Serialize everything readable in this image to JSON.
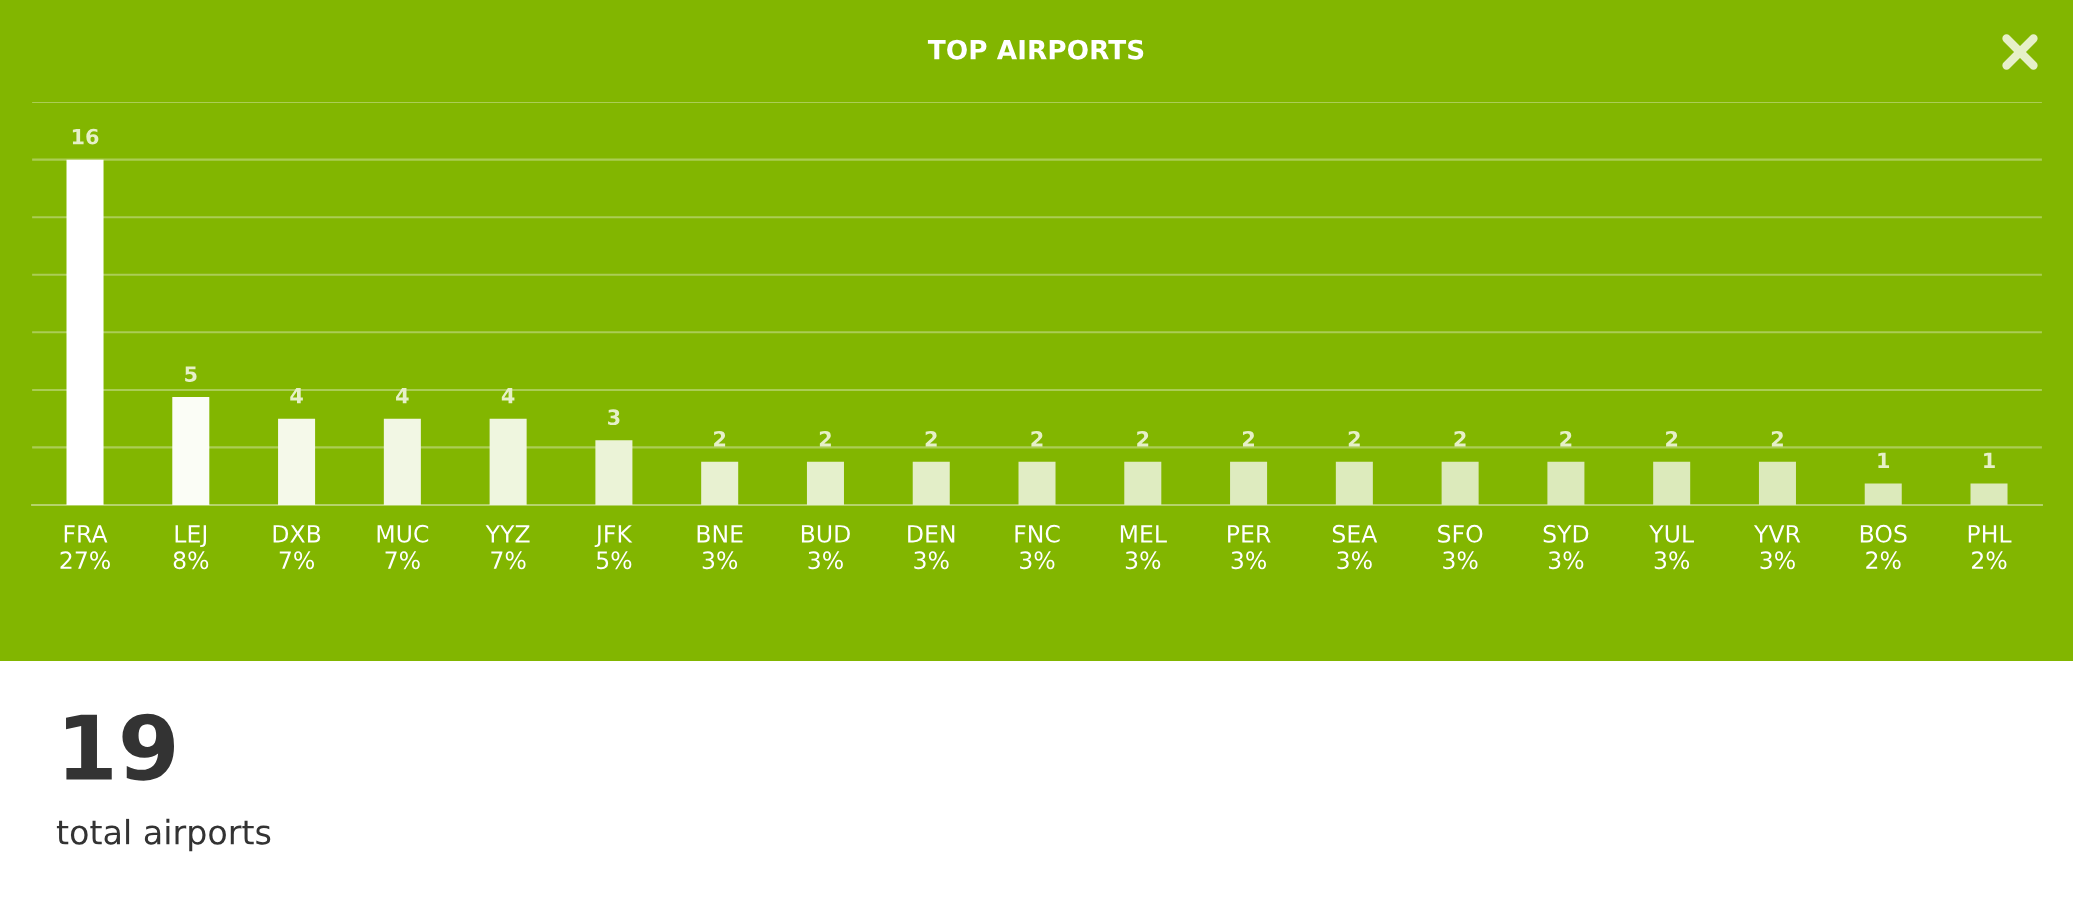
{
  "chart_data": {
    "type": "bar",
    "title": "TOP AIRPORTS",
    "categories": [
      "FRA\n27%",
      "LEJ\n8%",
      "DXB\n7%",
      "MUC\n7%",
      "YYZ\n7%",
      "JFK\n5%",
      "BNE\n3%",
      "BUD\n3%",
      "DEN\n3%",
      "FNC\n3%",
      "MEL\n3%",
      "PER\n3%",
      "SEA\n3%",
      "SFO\n3%",
      "SYD\n3%",
      "YUL\n3%",
      "YVR\n3%",
      "BOS\n2%",
      "PHL\n2%"
    ],
    "values": [
      16,
      5,
      4,
      4,
      4,
      3,
      2,
      2,
      2,
      2,
      2,
      2,
      2,
      2,
      2,
      2,
      2,
      1,
      1
    ],
    "colors": [
      "#ffffff",
      "#fbfdf6",
      "#f5f9ea",
      "#f2f7e4",
      "#eff6df",
      "#ebf3d7",
      "#e8f1d1",
      "#e5f0cc",
      "#e3eec8",
      "#e1edc5",
      "#dfecc1",
      "#deebbf",
      "#ddebbd",
      "#dceabb",
      "#dceabb",
      "#dceabb",
      "#dceabb",
      "#dceabb",
      "#dceabb"
    ],
    "data_labels": true,
    "ylim": [
      0,
      18.67
    ],
    "yticks": [
      {
        "value": 0,
        "label": null
      },
      {
        "value": 2.67,
        "label": null
      },
      {
        "value": 5.33,
        "label": null
      },
      {
        "value": 8,
        "label": null
      },
      {
        "value": 10.67,
        "label": null
      },
      {
        "value": 13.33,
        "label": null
      },
      {
        "value": 16,
        "label": null
      },
      {
        "value": 18.67,
        "label": null
      }
    ],
    "grid": "y",
    "tick_labels": "x",
    "annotations": [
      "19",
      "total airports"
    ]
  }
}
